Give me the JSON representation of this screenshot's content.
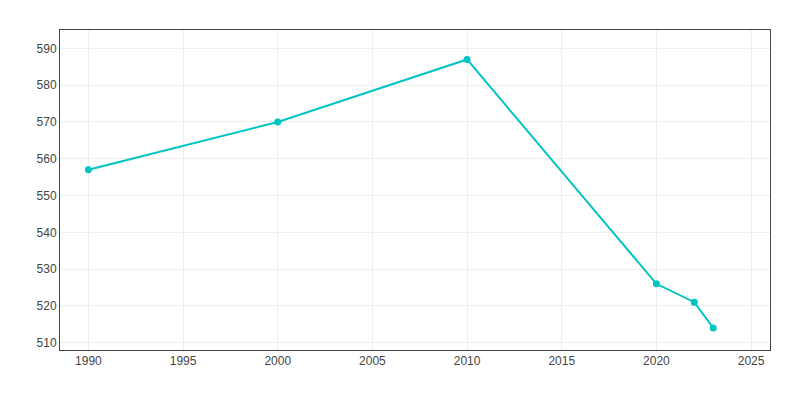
{
  "chart_data": {
    "type": "line",
    "x": [
      1990,
      2000,
      2010,
      2020,
      2022,
      2023
    ],
    "values": [
      557,
      570,
      587,
      526,
      521,
      514
    ],
    "color": "#00C4C4",
    "marker": "circle",
    "xlim": [
      1988.5,
      2026
    ],
    "ylim": [
      508,
      595
    ],
    "xticks": [
      1990,
      1995,
      2000,
      2005,
      2010,
      2015,
      2020,
      2025
    ],
    "yticks": [
      510,
      520,
      530,
      540,
      550,
      560,
      570,
      580,
      590
    ],
    "grid": true
  }
}
